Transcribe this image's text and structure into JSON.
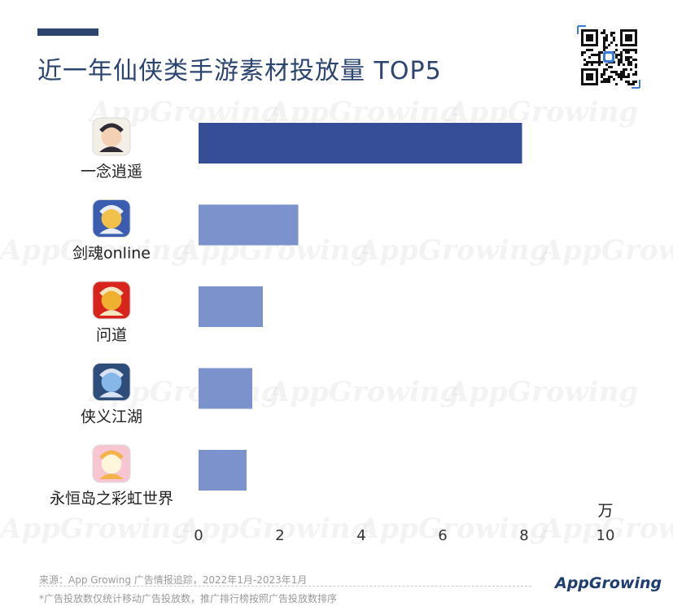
{
  "header": {
    "title": "近一年仙侠类手游素材投放量 TOP5"
  },
  "watermark_text": "AppGrowing",
  "chart_data": {
    "type": "bar",
    "orientation": "horizontal",
    "title": "近一年仙侠类手游素材投放量 TOP5",
    "categories": [
      "一念逍遥",
      "剑魂online",
      "问道",
      "侠义江湖",
      "永恒岛之彩虹世界"
    ],
    "icons": [
      "game-icon-yinian-xiaoyao",
      "game-icon-jianhun-online",
      "game-icon-wendao",
      "game-icon-xiayi-jianghu",
      "game-icon-yonghengdao"
    ],
    "values": [
      7.95,
      2.45,
      1.58,
      1.32,
      1.18
    ],
    "xlim": [
      0,
      10
    ],
    "xticks": [
      "0",
      "2",
      "4",
      "6",
      "8",
      "10"
    ],
    "unit": "万",
    "grid": false,
    "colors": [
      "#364e96",
      "#7b92cc",
      "#7b92cc",
      "#7b92cc",
      "#7b92cc"
    ]
  },
  "footer": {
    "source": "来源：App Growing 广告情报追踪，2022年1月-2023年1月",
    "note": "*广告投放数仅统计移动广告投放数，推广排行榜按照广告投放数排序",
    "brand": "AppGrowing"
  }
}
